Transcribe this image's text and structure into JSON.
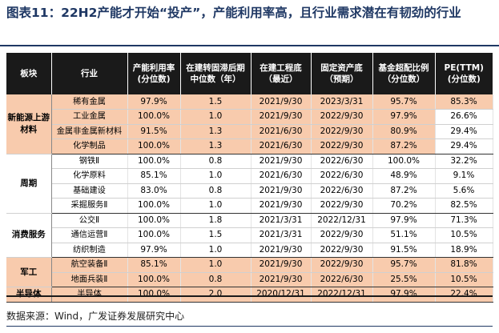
{
  "title": "图表11：22H2产能才开始“投产”，产能利用率高，且行业需求潜在有韧劲的行业",
  "headers": [
    "板块",
    "行业",
    "产能利用率 (分位数)",
    "在建转固滞后期 中位数（年）",
    "在建工程底 （最近）",
    "固定资产底 （预期）",
    "基金超配比例 （分位数）",
    "PE(TTM) (分位数)"
  ],
  "groups": [
    {
      "sector": "新能源上游材料",
      "rows": [
        {
          "industry": "稀有金属",
          "util": "97.9%",
          "lag": "1.5",
          "cip": "2021/9/30",
          "fixed": "2023/3/31",
          "fund": "95.7%",
          "pe": "85.3%",
          "pe_peach": true
        },
        {
          "industry": "工业金属",
          "util": "100.0%",
          "lag": "1.0",
          "cip": "2021/9/30",
          "fixed": "2022/9/30",
          "fund": "97.9%",
          "pe": "26.6%",
          "pe_peach": false
        },
        {
          "industry": "金属非金属新材料",
          "util": "91.5%",
          "lag": "1.3",
          "cip": "2021/6/30",
          "fixed": "2022/9/30",
          "fund": "80.9%",
          "pe": "29.4%",
          "pe_peach": false
        },
        {
          "industry": "化学制品",
          "util": "100.0%",
          "lag": "1.3",
          "cip": "2021/6/30",
          "fixed": "2022/9/30",
          "fund": "87.2%",
          "pe": "29.4%",
          "pe_peach": false
        }
      ]
    },
    {
      "sector": "周期",
      "rows": [
        {
          "industry": "钢铁Ⅱ",
          "util": "100.0%",
          "lag": "0.8",
          "cip": "2021/9/30",
          "fixed": "2022/6/30",
          "fund": "100.0%",
          "pe": "32.2%"
        },
        {
          "industry": "化学原料",
          "util": "85.1%",
          "lag": "1.0",
          "cip": "2021/6/30",
          "fixed": "2022/6/30",
          "fund": "48.9%",
          "pe": "9.1%"
        },
        {
          "industry": "基础建设",
          "util": "83.0%",
          "lag": "0.8",
          "cip": "2021/9/30",
          "fixed": "2022/6/30",
          "fund": "87.2%",
          "pe": "5.6%"
        },
        {
          "industry": "采掘服务Ⅱ",
          "util": "100.0%",
          "lag": "1.0",
          "cip": "2021/9/30",
          "fixed": "2022/9/30",
          "fund": "70.2%",
          "pe": "82.5%"
        }
      ]
    },
    {
      "sector": "消费服务",
      "rows": [
        {
          "industry": "公交Ⅱ",
          "util": "100.0%",
          "lag": "1.8",
          "cip": "2021/3/31",
          "fixed": "2022/12/31",
          "fund": "97.9%",
          "pe": "71.3%"
        },
        {
          "industry": "通信运营Ⅱ",
          "util": "100.0%",
          "lag": "1.5",
          "cip": "2021/3/31",
          "fixed": "2022/9/30",
          "fund": "51.1%",
          "pe": "10.5%"
        },
        {
          "industry": "纺织制造",
          "util": "97.9%",
          "lag": "1.0",
          "cip": "2021/9/30",
          "fixed": "2022/9/30",
          "fund": "91.5%",
          "pe": "18.9%"
        }
      ]
    },
    {
      "sector": "军工",
      "rows": [
        {
          "industry": "航空装备Ⅱ",
          "util": "85.1%",
          "lag": "1.0",
          "cip": "2021/9/30",
          "fixed": "2022/9/30",
          "fund": "95.7%",
          "pe": "81.8%"
        },
        {
          "industry": "地面兵装Ⅱ",
          "util": "100.0%",
          "lag": "0.8",
          "cip": "2021/9/30",
          "fixed": "2022/6/30",
          "fund": "25.5%",
          "pe": "10.5%"
        }
      ]
    },
    {
      "sector": "半导体",
      "rows": [
        {
          "industry": "半导体",
          "util": "100.0%",
          "lag": "2.0",
          "cip": "2020/12/31",
          "fixed": "2022/12/31",
          "fund": "97.9%",
          "pe": "22.4%"
        }
      ]
    }
  ],
  "source": "数据来源：Wind，广发证券发展研究中心",
  "colors": {
    "peach": "#f8cbad",
    "header_bg": "#1a1a1a",
    "title": "#1f3864"
  }
}
